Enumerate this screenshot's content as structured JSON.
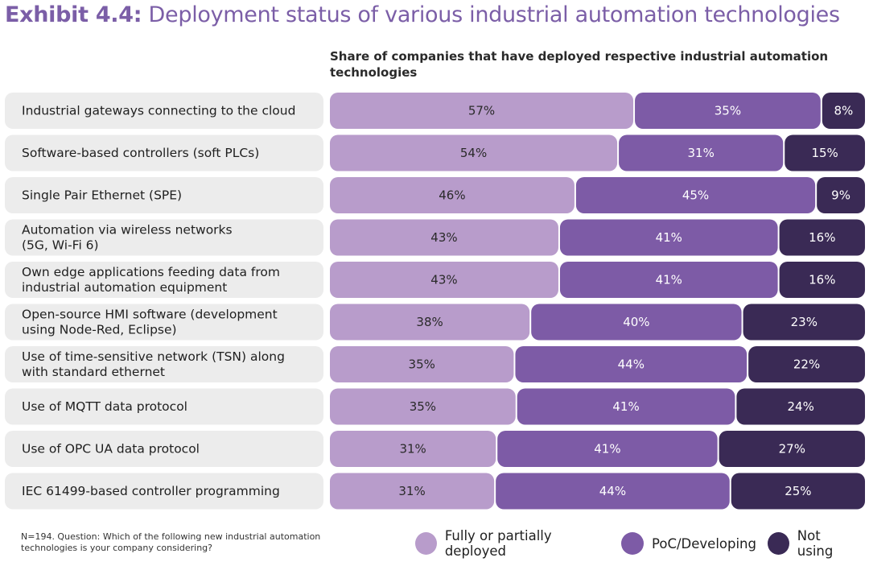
{
  "title_bold": "Exhibit 4.4:",
  "title_rest": " Deployment status of various industrial automation technologies",
  "colors": {
    "title": "#7b5ea7",
    "deployed": "#b89ccb",
    "developing": "#7d5ba6",
    "not_using": "#3a2a55",
    "row_background": "#ececec"
  },
  "footnote": "N=194. Question: Which of the following new industrial automation technologies is your company considering?",
  "chart_data": {
    "type": "bar",
    "orientation": "horizontal",
    "stacked": true,
    "title": "Share of companies that have deployed respective industrial automation technologies",
    "categories": [
      [
        "Industrial gateways connecting to the cloud"
      ],
      [
        "Software-based controllers (soft PLCs)"
      ],
      [
        "Single Pair Ethernet (SPE)"
      ],
      [
        "Automation via wireless networks",
        "(5G, Wi-Fi 6)"
      ],
      [
        "Own edge applications feeding data from",
        "industrial automation equipment"
      ],
      [
        "Open-source HMI software (development",
        "using Node-Red, Eclipse)"
      ],
      [
        "Use of time-sensitive network (TSN) along",
        "with standard ethernet"
      ],
      [
        "Use of MQTT data protocol"
      ],
      [
        "Use of OPC UA data protocol"
      ],
      [
        "IEC 61499-based controller programming"
      ]
    ],
    "series": [
      {
        "name": "Fully or partially deployed",
        "values": [
          57,
          54,
          46,
          43,
          43,
          38,
          35,
          35,
          31,
          31
        ]
      },
      {
        "name": "PoC/Developing",
        "values": [
          35,
          31,
          45,
          41,
          41,
          40,
          44,
          41,
          41,
          44
        ]
      },
      {
        "name": "Not using",
        "values": [
          8,
          15,
          9,
          16,
          16,
          23,
          22,
          24,
          27,
          25
        ]
      }
    ],
    "unit": "%",
    "xlim": [
      0,
      100
    ],
    "legend_position": "bottom-right"
  }
}
